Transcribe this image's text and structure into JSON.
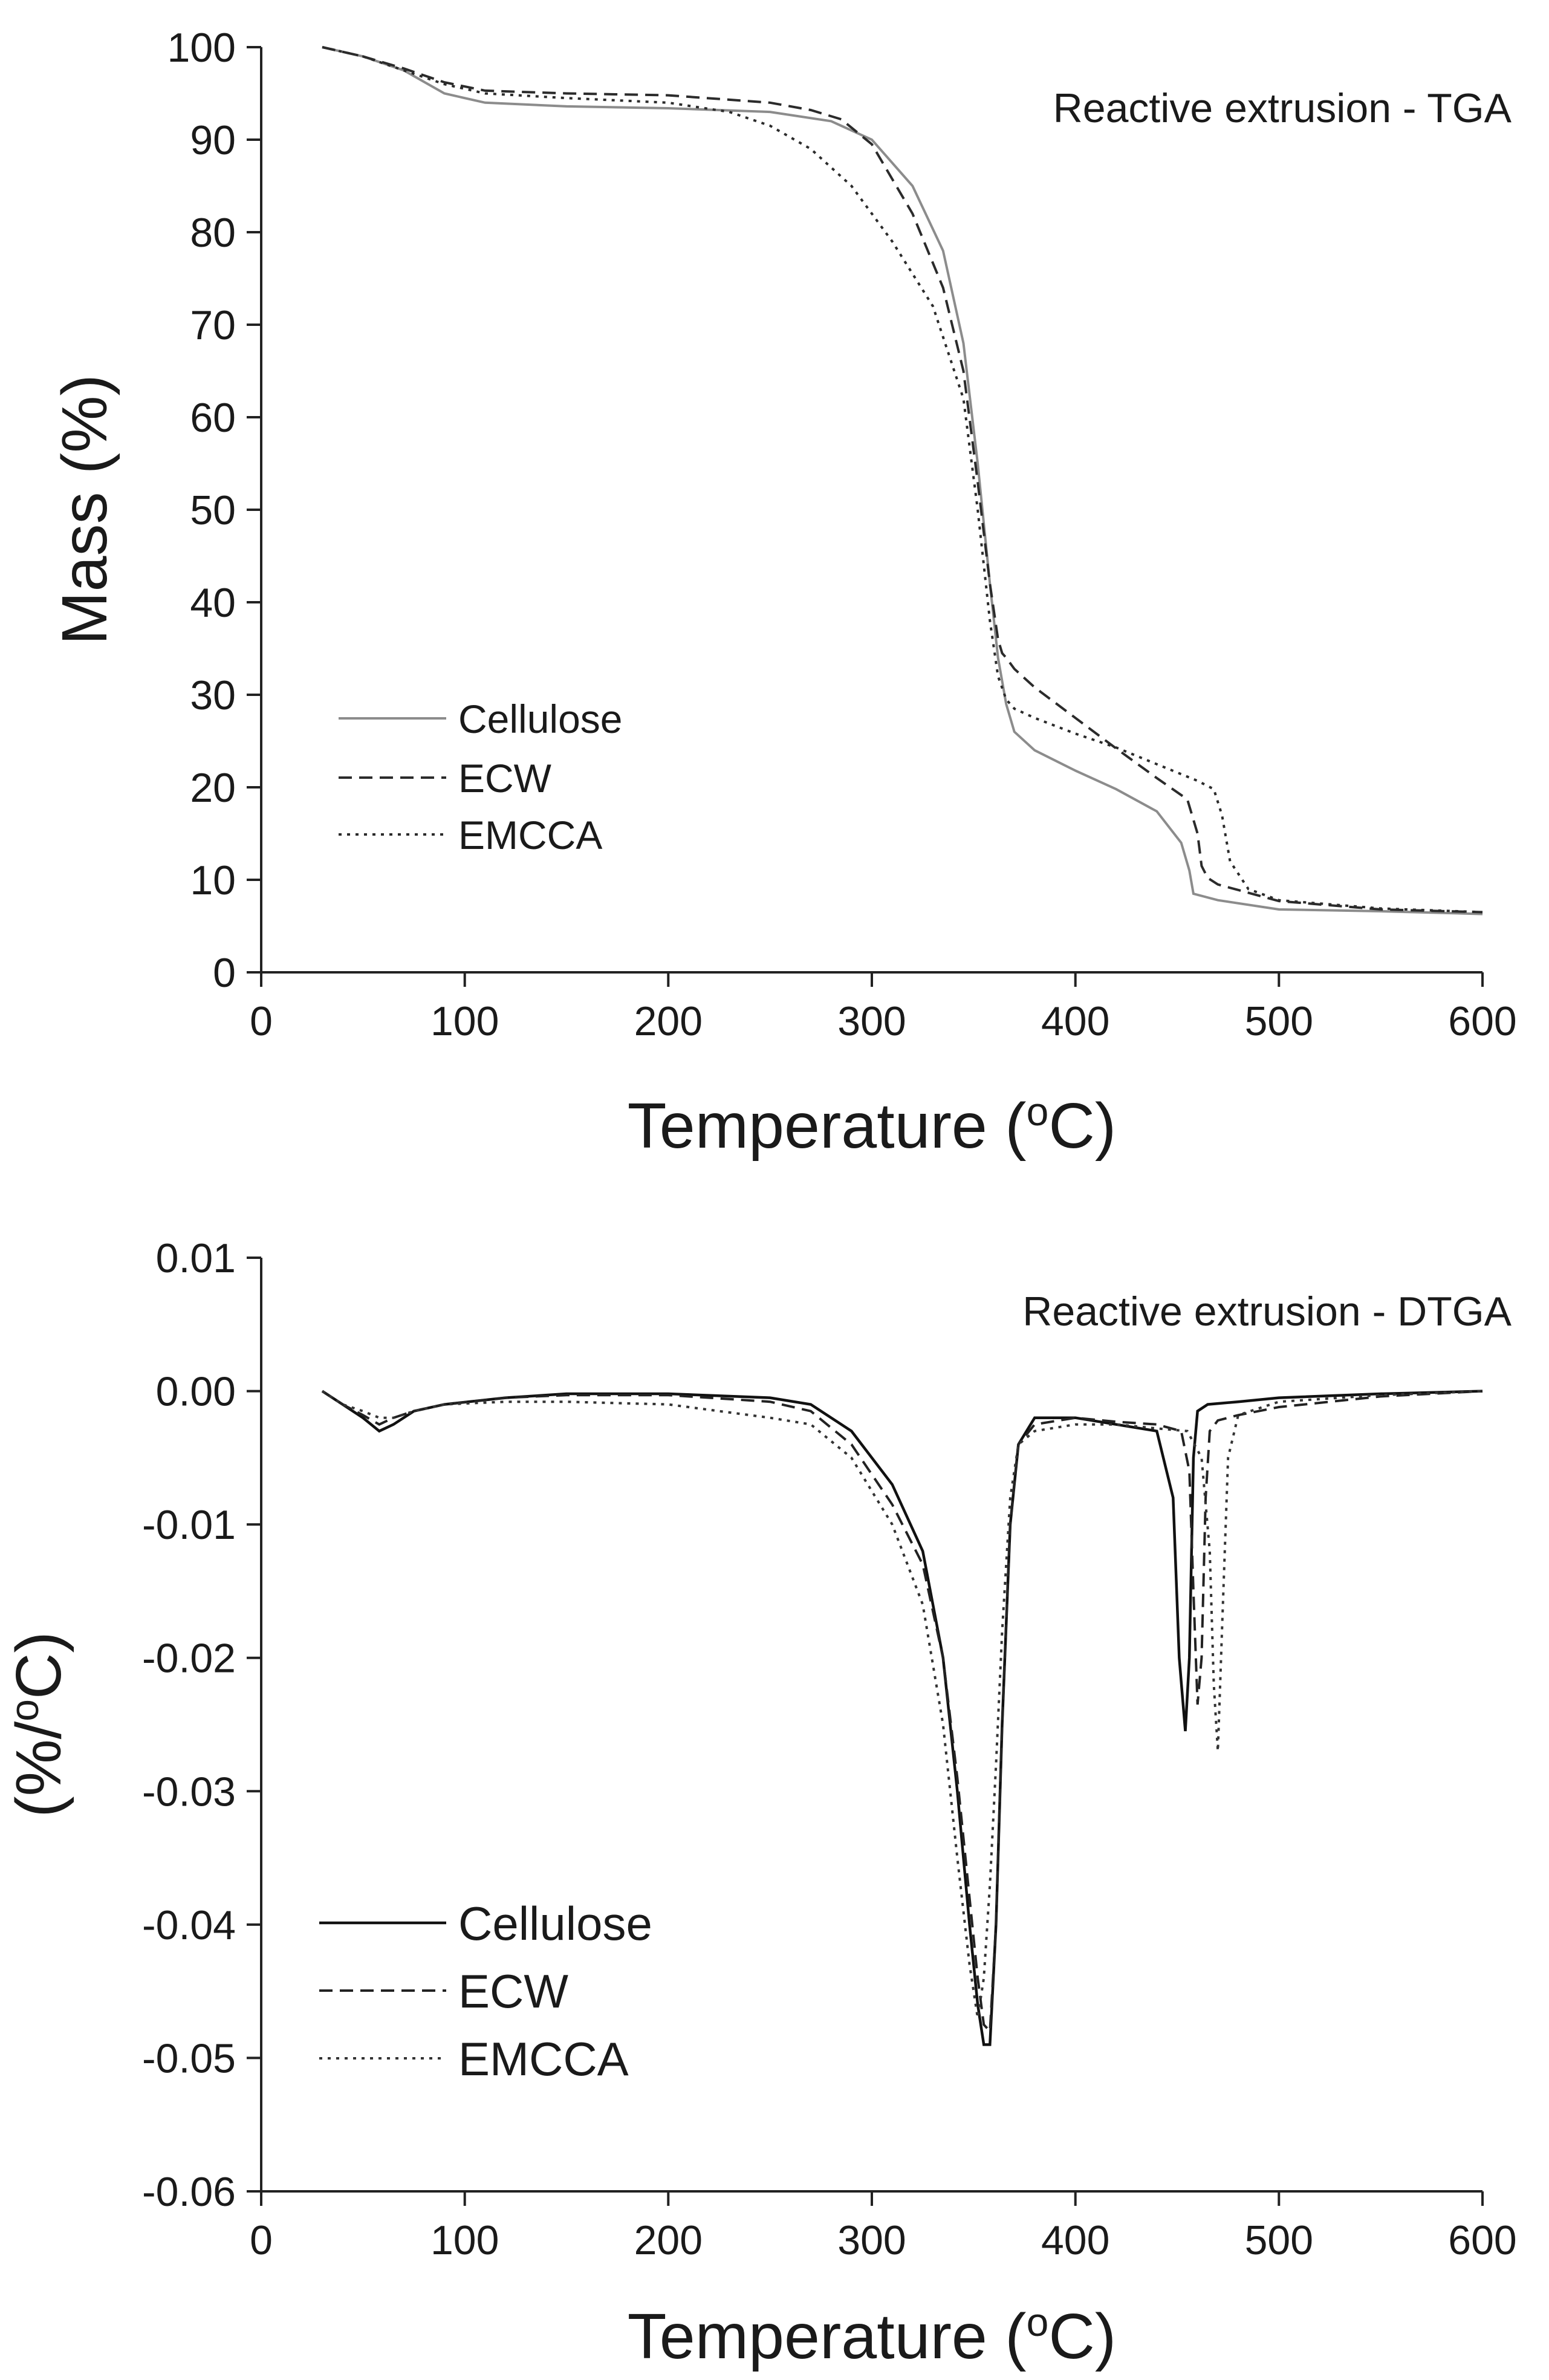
{
  "chart_data": [
    {
      "type": "line",
      "title": "Reactive extrusion - TGA",
      "xlabel": "Temperature (",
      "xlabel_degree": "o",
      "xlabel_unit": "C)",
      "ylabel": "Mass (%)",
      "xlim": [
        0,
        600
      ],
      "ylim": [
        0,
        100
      ],
      "xticks": [
        0,
        100,
        200,
        300,
        400,
        500,
        600
      ],
      "xtick_labels": [
        "0",
        "100",
        "200",
        "300",
        "400",
        "500",
        "600"
      ],
      "yticks": [
        0,
        10,
        20,
        30,
        40,
        50,
        60,
        70,
        80,
        90,
        100
      ],
      "ytick_labels": [
        "0",
        "10",
        "20",
        "30",
        "40",
        "50",
        "60",
        "70",
        "80",
        "90",
        "100"
      ],
      "grid": false,
      "legend_position": "bottom-left",
      "series": [
        {
          "name": "Cellulose",
          "style": "solid",
          "color": "#8c8c8c",
          "x": [
            30,
            50,
            70,
            90,
            110,
            150,
            200,
            250,
            280,
            300,
            320,
            335,
            345,
            352,
            358,
            362,
            366,
            370,
            380,
            400,
            420,
            440,
            452,
            456,
            458,
            470,
            500,
            550,
            600
          ],
          "y": [
            100,
            99,
            97.5,
            95,
            94,
            93.6,
            93.4,
            93,
            92,
            90,
            85,
            78,
            68,
            55,
            42,
            34,
            29,
            26,
            24,
            21.8,
            19.8,
            17.4,
            14,
            11,
            8.5,
            7.8,
            6.8,
            6.6,
            6.3
          ]
        },
        {
          "name": "ECW",
          "style": "dashed",
          "color": "#2b2b2b",
          "x": [
            30,
            50,
            70,
            90,
            110,
            150,
            200,
            250,
            270,
            285,
            300,
            320,
            335,
            345,
            352,
            358,
            362,
            364,
            366,
            370,
            380,
            400,
            420,
            440,
            455,
            460,
            462,
            465,
            470,
            500,
            550,
            600
          ],
          "y": [
            100,
            99,
            97.7,
            96.2,
            95.3,
            95,
            94.8,
            94,
            93.2,
            92.2,
            89.5,
            82,
            74,
            65,
            53,
            42,
            36,
            34.5,
            34,
            32.8,
            30.8,
            27.5,
            24.2,
            21,
            18.7,
            15,
            11.5,
            10.2,
            9.5,
            7.7,
            6.8,
            6.5
          ]
        },
        {
          "name": "EMCCA",
          "style": "dotted",
          "color": "#2b2b2b",
          "x": [
            30,
            50,
            70,
            90,
            110,
            150,
            200,
            230,
            250,
            270,
            290,
            310,
            330,
            345,
            352,
            358,
            362,
            366,
            370,
            380,
            400,
            420,
            440,
            460,
            468,
            472,
            476,
            485,
            500,
            550,
            600
          ],
          "y": [
            100,
            99,
            97.5,
            96,
            95,
            94.5,
            94,
            93,
            91.5,
            89,
            85,
            79,
            72,
            62,
            50,
            38,
            32,
            29.5,
            28.5,
            27.5,
            25.8,
            24.3,
            22.5,
            20.7,
            19.8,
            17,
            12,
            9,
            7.8,
            6.9,
            6.5
          ]
        }
      ]
    },
    {
      "type": "line",
      "title": "Reactive extrusion - DTGA",
      "xlabel": "Temperature (",
      "xlabel_degree": "o",
      "xlabel_unit": "C)",
      "ylabel": "(%/",
      "ylabel_degree": "o",
      "ylabel_unit": "C)",
      "xlim": [
        0,
        600
      ],
      "ylim": [
        -0.06,
        0.01
      ],
      "xticks": [
        0,
        100,
        200,
        300,
        400,
        500,
        600
      ],
      "xtick_labels": [
        "0",
        "100",
        "200",
        "300",
        "400",
        "500",
        "600"
      ],
      "yticks": [
        0.01,
        0.0,
        -0.01,
        -0.02,
        -0.03,
        -0.04,
        -0.05,
        -0.06
      ],
      "ytick_labels": [
        "0.01",
        "0.00",
        "-0.01",
        "-0.02",
        "-0.03",
        "-0.04",
        "-0.05",
        "-0.06"
      ],
      "grid": false,
      "legend_position": "bottom-left",
      "series": [
        {
          "name": "Cellulose",
          "style": "solid",
          "color": "#111111",
          "x": [
            30,
            40,
            50,
            58,
            65,
            75,
            90,
            120,
            150,
            200,
            250,
            270,
            290,
            310,
            325,
            335,
            342,
            348,
            352,
            355,
            358,
            361,
            364,
            368,
            372,
            380,
            400,
            420,
            440,
            448,
            451,
            454,
            456,
            458,
            460,
            465,
            480,
            500,
            550,
            600
          ],
          "y": [
            0,
            -0.001,
            -0.002,
            -0.003,
            -0.0025,
            -0.0015,
            -0.001,
            -0.0005,
            -0.0002,
            -0.0002,
            -0.0005,
            -0.001,
            -0.003,
            -0.007,
            -0.012,
            -0.02,
            -0.03,
            -0.04,
            -0.046,
            -0.049,
            -0.049,
            -0.04,
            -0.025,
            -0.01,
            -0.004,
            -0.002,
            -0.002,
            -0.0025,
            -0.003,
            -0.008,
            -0.02,
            -0.0255,
            -0.02,
            -0.005,
            -0.0015,
            -0.001,
            -0.0008,
            -0.0005,
            -0.0002,
            0
          ]
        },
        {
          "name": "ECW",
          "style": "dashed",
          "color": "#222222",
          "x": [
            30,
            40,
            50,
            58,
            65,
            75,
            90,
            120,
            150,
            200,
            250,
            270,
            290,
            310,
            325,
            335,
            342,
            348,
            352,
            355,
            358,
            361,
            364,
            368,
            372,
            380,
            400,
            420,
            440,
            452,
            456,
            458,
            460,
            462,
            464,
            466,
            470,
            480,
            500,
            550,
            600
          ],
          "y": [
            0,
            -0.001,
            -0.0018,
            -0.0025,
            -0.002,
            -0.0015,
            -0.001,
            -0.0005,
            -0.0003,
            -0.0003,
            -0.0008,
            -0.0015,
            -0.004,
            -0.0085,
            -0.013,
            -0.02,
            -0.029,
            -0.038,
            -0.044,
            -0.0475,
            -0.048,
            -0.04,
            -0.025,
            -0.01,
            -0.004,
            -0.0025,
            -0.002,
            -0.0023,
            -0.0025,
            -0.003,
            -0.006,
            -0.015,
            -0.0235,
            -0.02,
            -0.008,
            -0.003,
            -0.0022,
            -0.0018,
            -0.0012,
            -0.0004,
            0
          ]
        },
        {
          "name": "EMCCA",
          "style": "dotted",
          "color": "#333333",
          "x": [
            30,
            40,
            50,
            58,
            65,
            75,
            90,
            120,
            150,
            200,
            250,
            270,
            290,
            310,
            325,
            335,
            342,
            348,
            352,
            355,
            358,
            361,
            364,
            368,
            372,
            380,
            400,
            420,
            440,
            455,
            462,
            466,
            468,
            470,
            472,
            475,
            480,
            500,
            550,
            600
          ],
          "y": [
            0,
            -0.001,
            -0.0015,
            -0.002,
            -0.002,
            -0.0015,
            -0.001,
            -0.0008,
            -0.0008,
            -0.001,
            -0.002,
            -0.0025,
            -0.005,
            -0.01,
            -0.016,
            -0.025,
            -0.035,
            -0.043,
            -0.047,
            -0.044,
            -0.037,
            -0.028,
            -0.018,
            -0.008,
            -0.004,
            -0.003,
            -0.0025,
            -0.0025,
            -0.0028,
            -0.003,
            -0.005,
            -0.012,
            -0.022,
            -0.027,
            -0.018,
            -0.005,
            -0.0018,
            -0.0008,
            -0.0003,
            0
          ]
        }
      ]
    }
  ]
}
